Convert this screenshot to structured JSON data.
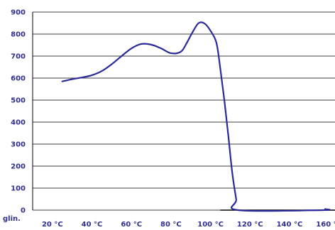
{
  "chart_data": {
    "type": "line",
    "title": "",
    "xlabel": "glin.",
    "ylabel": "",
    "xlim": [
      10,
      163
    ],
    "ylim": [
      0,
      900
    ],
    "xticks": [
      20,
      40,
      60,
      80,
      100,
      120,
      140,
      160
    ],
    "xtick_labels": [
      "20 °C",
      "40 °C",
      "60 °C",
      "80 °C",
      "100 °C",
      "120 °C",
      "140 °C",
      "160 °C"
    ],
    "yticks": [
      0,
      100,
      200,
      300,
      400,
      500,
      600,
      700,
      800,
      900
    ],
    "ytick_labels": [
      "0",
      "100",
      "200",
      "300",
      "400",
      "500",
      "600",
      "700",
      "800",
      "900"
    ],
    "grid": "horizontal",
    "colors": {
      "line": "#2a2a9c",
      "grid": "#000000",
      "ticks": "#2f2f8f"
    },
    "series": [
      {
        "points": [
          [
            25,
            585
          ],
          [
            30,
            595
          ],
          [
            35,
            603
          ],
          [
            40,
            613
          ],
          [
            45,
            632
          ],
          [
            50,
            663
          ],
          [
            55,
            700
          ],
          [
            60,
            735
          ],
          [
            65,
            755
          ],
          [
            70,
            752
          ],
          [
            75,
            735
          ],
          [
            80,
            713
          ],
          [
            85,
            720
          ],
          [
            88,
            760
          ],
          [
            91,
            810
          ],
          [
            94,
            850
          ],
          [
            97,
            848
          ],
          [
            100,
            815
          ],
          [
            103,
            760
          ],
          [
            105,
            640
          ],
          [
            107,
            500
          ],
          [
            109,
            340
          ],
          [
            111,
            170
          ],
          [
            113,
            50
          ],
          [
            114,
            0
          ],
          [
            157,
            0
          ],
          [
            158,
            5
          ]
        ]
      }
    ],
    "baseline_segment": {
      "x": [
        105,
        163
      ],
      "y": 0
    }
  }
}
